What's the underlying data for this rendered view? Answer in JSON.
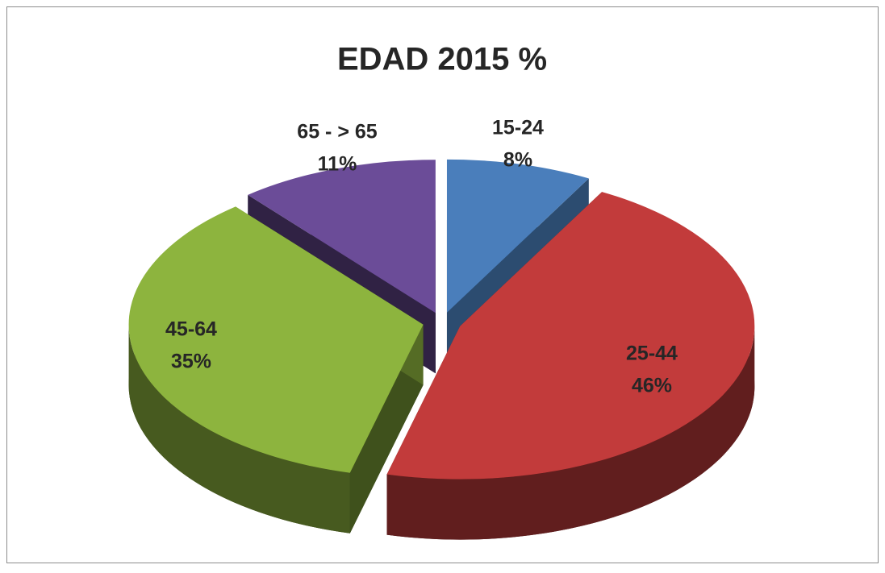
{
  "chart_data": {
    "type": "pie",
    "title": "EDAD 2015 %",
    "categories": [
      "15-24",
      "25-44",
      "45-64",
      "65 - > 65"
    ],
    "values": [
      8,
      46,
      35,
      11
    ],
    "value_labels": [
      "8%",
      "46%",
      "35%",
      "11%"
    ],
    "colors": [
      "#4a7ebb",
      "#c23b3b",
      "#8db43e",
      "#6b4c98"
    ],
    "exploded": true,
    "three_d": true
  }
}
